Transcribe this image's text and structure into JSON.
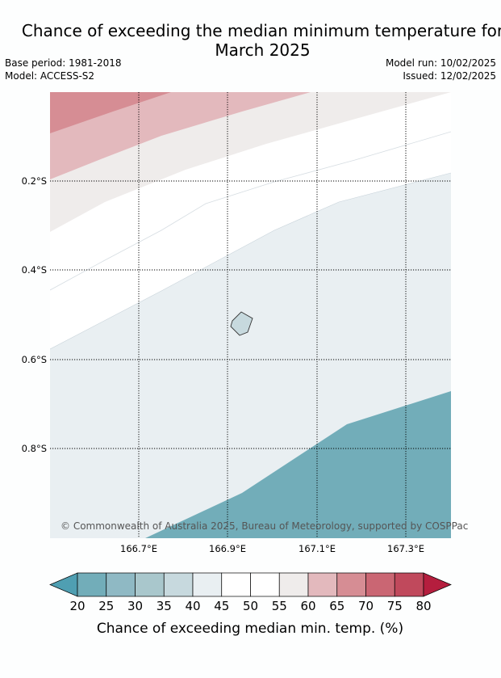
{
  "title_line1": "Chance of exceeding the median minimum temperature for",
  "title_line2": "March 2025",
  "base_period": "Base period: 1981-2018",
  "model": "Model: ACCESS-S2",
  "model_run": "Model run: 10/02/2025",
  "issued": "Issued: 12/02/2025",
  "copyright": "© Commonwealth of Australia 2025, Bureau of Meteorology, supported by COSPPac",
  "lat_labels": [
    "0.2°S",
    "0.4°S",
    "0.6°S",
    "0.8°S"
  ],
  "lon_labels": [
    "166.7°E",
    "166.9°E",
    "167.1°E",
    "167.3°E"
  ],
  "colorbar": {
    "title": "Chance of exceeding median min. temp. (%)",
    "ticks": [
      "20",
      "25",
      "30",
      "35",
      "40",
      "45",
      "50",
      "55",
      "60",
      "65",
      "70",
      "75",
      "80"
    ],
    "below_color": "#4f9fb2",
    "above_color": "#b51e3e",
    "bin_colors": [
      "#72adb9",
      "#8fb9c4",
      "#a9c7cc",
      "#c7d9de",
      "#e9eff2",
      "#ffffff",
      "#ffffff",
      "#efeceb",
      "#e3b9bd",
      "#d68d94",
      "#ca6673",
      "#c0495c"
    ]
  },
  "map": {
    "band_colors": [
      "#d68d94",
      "#e3b9bd",
      "#efeceb",
      "#ffffff",
      "#e9eff2",
      "#c7d9de",
      "#a9c7cc",
      "#8fb9c4",
      "#72adb9"
    ]
  }
}
